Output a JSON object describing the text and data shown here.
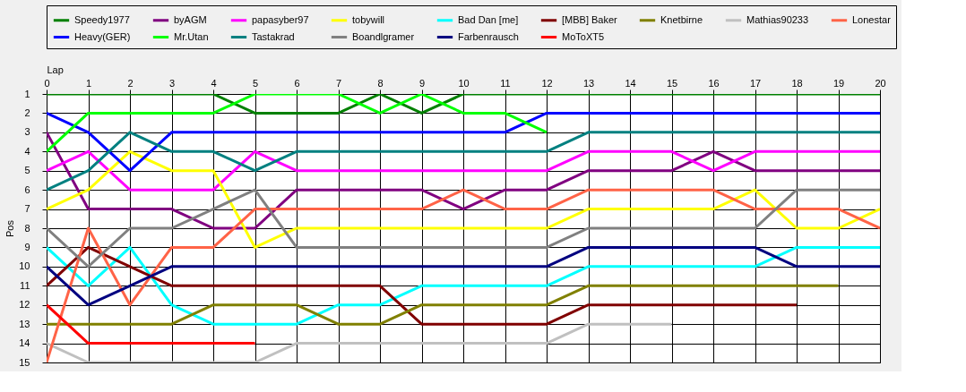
{
  "chart_data": {
    "type": "line",
    "xlabel": "Lap",
    "ylabel": "Pos",
    "x": [
      0,
      1,
      2,
      3,
      4,
      5,
      6,
      7,
      8,
      9,
      10,
      11,
      12,
      13,
      14,
      15,
      16,
      17,
      18,
      19,
      20
    ],
    "xlim": [
      0,
      20
    ],
    "xticks": [
      0,
      1,
      2,
      3,
      4,
      5,
      6,
      7,
      8,
      9,
      10,
      11,
      12,
      13,
      14,
      15,
      16,
      17,
      18,
      19,
      20
    ],
    "ylim": [
      15,
      1
    ],
    "yticks": [
      1,
      2,
      3,
      4,
      5,
      6,
      7,
      8,
      9,
      10,
      11,
      12,
      13,
      14,
      15
    ],
    "grid": true,
    "legend": "top",
    "marker": "none",
    "line_style": "solid",
    "series": [
      {
        "name": "Speedy1977",
        "color": "#008000",
        "values": [
          1,
          1,
          1,
          1,
          1,
          2,
          2,
          2,
          1,
          2,
          1,
          1,
          1,
          1,
          1,
          1,
          1,
          1,
          1,
          1,
          1
        ]
      },
      {
        "name": "byAGM",
        "color": "#800080",
        "values": [
          3,
          7,
          7,
          7,
          8,
          8,
          6,
          6,
          6,
          6,
          7,
          6,
          6,
          5,
          5,
          5,
          4,
          5,
          5,
          5,
          5
        ]
      },
      {
        "name": "papasyber97",
        "color": "#ff00ff",
        "values": [
          5,
          4,
          6,
          6,
          6,
          4,
          5,
          5,
          5,
          5,
          5,
          5,
          5,
          4,
          4,
          4,
          5,
          4,
          4,
          4,
          4
        ]
      },
      {
        "name": "tobywill",
        "color": "#ffff00",
        "values": [
          7,
          6,
          4,
          5,
          5,
          9,
          8,
          8,
          8,
          8,
          8,
          8,
          8,
          7,
          7,
          7,
          7,
          6,
          8,
          8,
          7
        ]
      },
      {
        "name": "Bad Dan [me]",
        "color": "#00ffff",
        "values": [
          9,
          11,
          9,
          12,
          13,
          13,
          13,
          12,
          12,
          11,
          11,
          11,
          11,
          10,
          10,
          10,
          10,
          10,
          9,
          9,
          9
        ]
      },
      {
        "name": "[MBB] Baker",
        "color": "#800000",
        "values": [
          11,
          9,
          10,
          11,
          11,
          11,
          11,
          11,
          11,
          13,
          13,
          13,
          13,
          12,
          12,
          12,
          12,
          12,
          12,
          null,
          null
        ]
      },
      {
        "name": "Knetbirne",
        "color": "#808000",
        "values": [
          13,
          13,
          13,
          13,
          12,
          12,
          12,
          13,
          13,
          12,
          12,
          12,
          12,
          11,
          11,
          11,
          11,
          11,
          11,
          11,
          null
        ]
      },
      {
        "name": "Mathias90233",
        "color": "#c0c0c0",
        "values": [
          14,
          15,
          15,
          15,
          15,
          15,
          14,
          14,
          14,
          14,
          14,
          14,
          14,
          13,
          13,
          13,
          null,
          null,
          null,
          null,
          null
        ]
      },
      {
        "name": "Lonestar",
        "color": "#ff6347",
        "values": [
          15,
          8,
          12,
          9,
          9,
          7,
          7,
          7,
          7,
          7,
          6,
          7,
          7,
          6,
          6,
          6,
          6,
          7,
          7,
          7,
          8
        ]
      },
      {
        "name": "Heavy(GER)",
        "color": "#0000ff",
        "values": [
          2,
          3,
          5,
          3,
          3,
          3,
          3,
          3,
          3,
          3,
          3,
          3,
          2,
          2,
          2,
          2,
          2,
          2,
          2,
          2,
          2
        ]
      },
      {
        "name": "Mr.Utan",
        "color": "#00ff00",
        "values": [
          4,
          2,
          2,
          2,
          2,
          1,
          1,
          1,
          2,
          1,
          2,
          2,
          3,
          null,
          null,
          null,
          null,
          null,
          null,
          null,
          null
        ]
      },
      {
        "name": "Tastakrad",
        "color": "#008080",
        "values": [
          6,
          5,
          3,
          4,
          4,
          5,
          4,
          4,
          4,
          4,
          4,
          4,
          4,
          3,
          3,
          3,
          3,
          3,
          3,
          3,
          3
        ]
      },
      {
        "name": "Boandlgramer",
        "color": "#808080",
        "values": [
          8,
          10,
          8,
          8,
          7,
          6,
          9,
          9,
          9,
          9,
          9,
          9,
          9,
          8,
          8,
          8,
          8,
          8,
          6,
          6,
          6
        ]
      },
      {
        "name": "Farbenrausch",
        "color": "#000080",
        "values": [
          10,
          12,
          11,
          10,
          10,
          10,
          10,
          10,
          10,
          10,
          10,
          10,
          10,
          9,
          9,
          9,
          9,
          9,
          10,
          10,
          10
        ]
      },
      {
        "name": "MoToXT5",
        "color": "#ff0000",
        "values": [
          12,
          14,
          14,
          14,
          14,
          14,
          null,
          null,
          null,
          null,
          null,
          null,
          null,
          null,
          null,
          null,
          null,
          null,
          null,
          null,
          null
        ]
      }
    ]
  }
}
